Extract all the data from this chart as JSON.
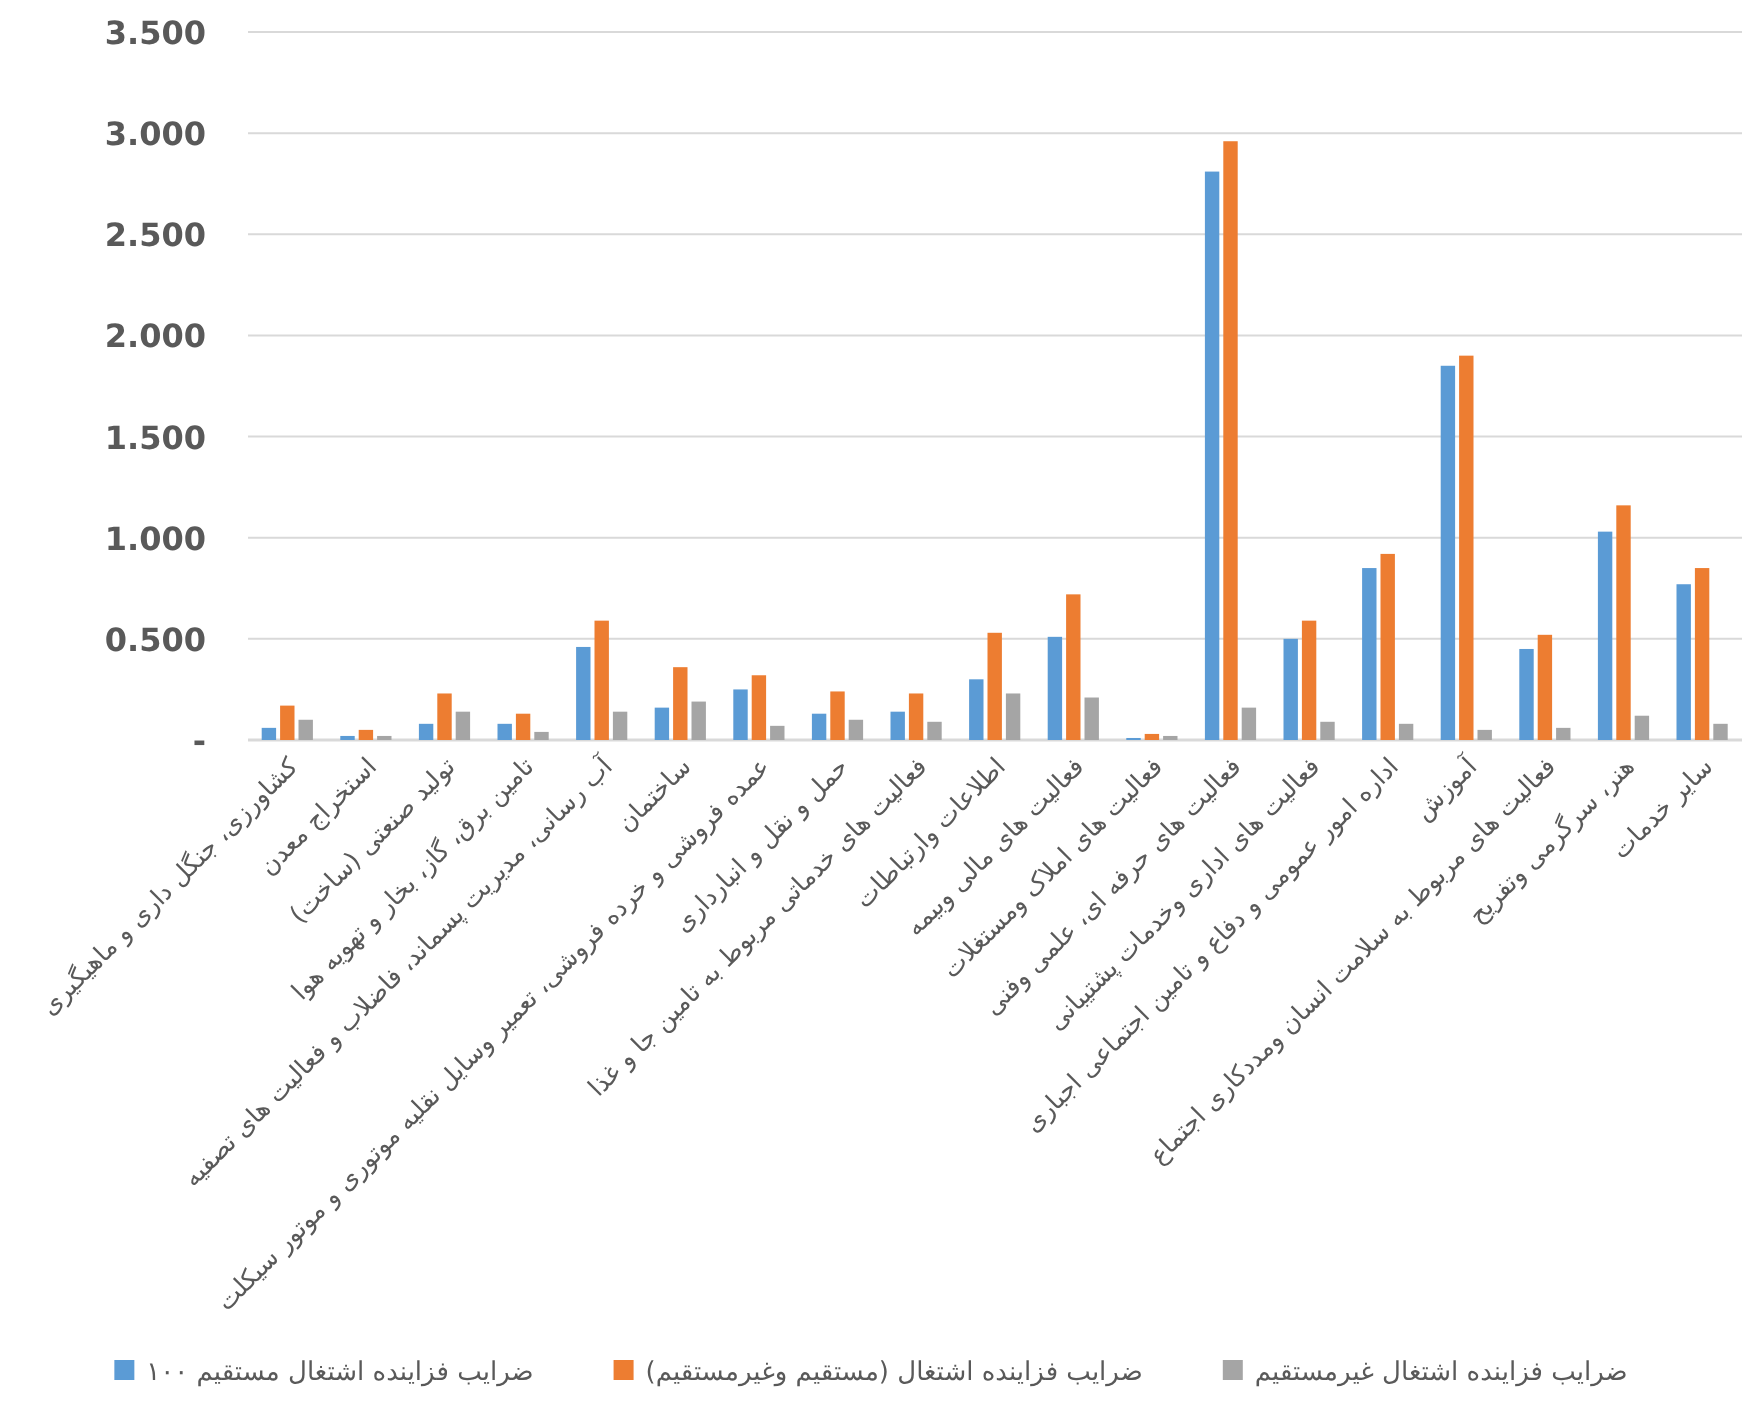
{
  "chart_data": {
    "type": "bar",
    "categories": [
      "کشاورزی، جنگل داری و ماهیگیری",
      "استخراج معدن",
      "تولید صنعتی (ساخت)",
      "تامین برق، گاز، بخار و تهویه هوا",
      "آب رسانی، مدیریت پسماند، فاضلاب و فعالیت های تصفیه",
      "ساختمان",
      "عمده فروشی و خرده فروشی، تعمیر وسایل نقلیه موتوری و موتور سیکلت",
      "حمل و نقل و انبارداری",
      "فعالیت های خدماتی مربوط به تامین جا و غذا",
      "اطلاعات وارتباطات",
      "فعالیت های مالی وبیمه",
      "فعالیت های املاک ومستغلات",
      "فعالیت های حرفه ای، علمی وفنی",
      "فعالیت های اداری وخدمات پشتیبانی",
      "اداره امور عمومی و دفاع و تامین اجتماعی اجباری",
      "آموزش",
      "فعالیت های مربوط به سلامت انسان ومددکاری اجتماع",
      "هنر، سرگرمی وتفریح",
      "سایر خدمات"
    ],
    "series": [
      {
        "name": "ضرایب فزاینده اشتغال مستقیم ۱۰۰",
        "color": "#5b9bd5",
        "values": [
          0.06,
          0.02,
          0.08,
          0.08,
          0.46,
          0.16,
          0.25,
          0.13,
          0.14,
          0.3,
          0.51,
          0.01,
          2.81,
          0.5,
          0.85,
          1.85,
          0.45,
          1.03,
          0.77
        ]
      },
      {
        "name": "ضرایب فزاینده اشتغال (مستقیم وغیرمستقیم)",
        "color": "#ed7d31",
        "values": [
          0.17,
          0.05,
          0.23,
          0.13,
          0.59,
          0.36,
          0.32,
          0.24,
          0.23,
          0.53,
          0.72,
          0.03,
          2.96,
          0.59,
          0.92,
          1.9,
          0.52,
          1.16,
          0.85
        ]
      },
      {
        "name": "ضرایب فزاینده اشتغال غیرمستقیم",
        "color": "#a5a5a5",
        "values": [
          0.1,
          0.02,
          0.14,
          0.04,
          0.14,
          0.19,
          0.07,
          0.1,
          0.09,
          0.23,
          0.21,
          0.02,
          0.16,
          0.09,
          0.08,
          0.05,
          0.06,
          0.12,
          0.08
        ]
      }
    ],
    "ylim": [
      0,
      3.5
    ],
    "yticks": [
      {
        "value": 0,
        "label": "-"
      },
      {
        "value": 0.5,
        "label": "0.500"
      },
      {
        "value": 1,
        "label": "1.000"
      },
      {
        "value": 1.5,
        "label": "1.500"
      },
      {
        "value": 2,
        "label": "2.000"
      },
      {
        "value": 2.5,
        "label": "2.500"
      },
      {
        "value": 3,
        "label": "3.000"
      },
      {
        "value": 3.5,
        "label": "3.500"
      }
    ],
    "grid": "y",
    "legend": "bottom"
  }
}
